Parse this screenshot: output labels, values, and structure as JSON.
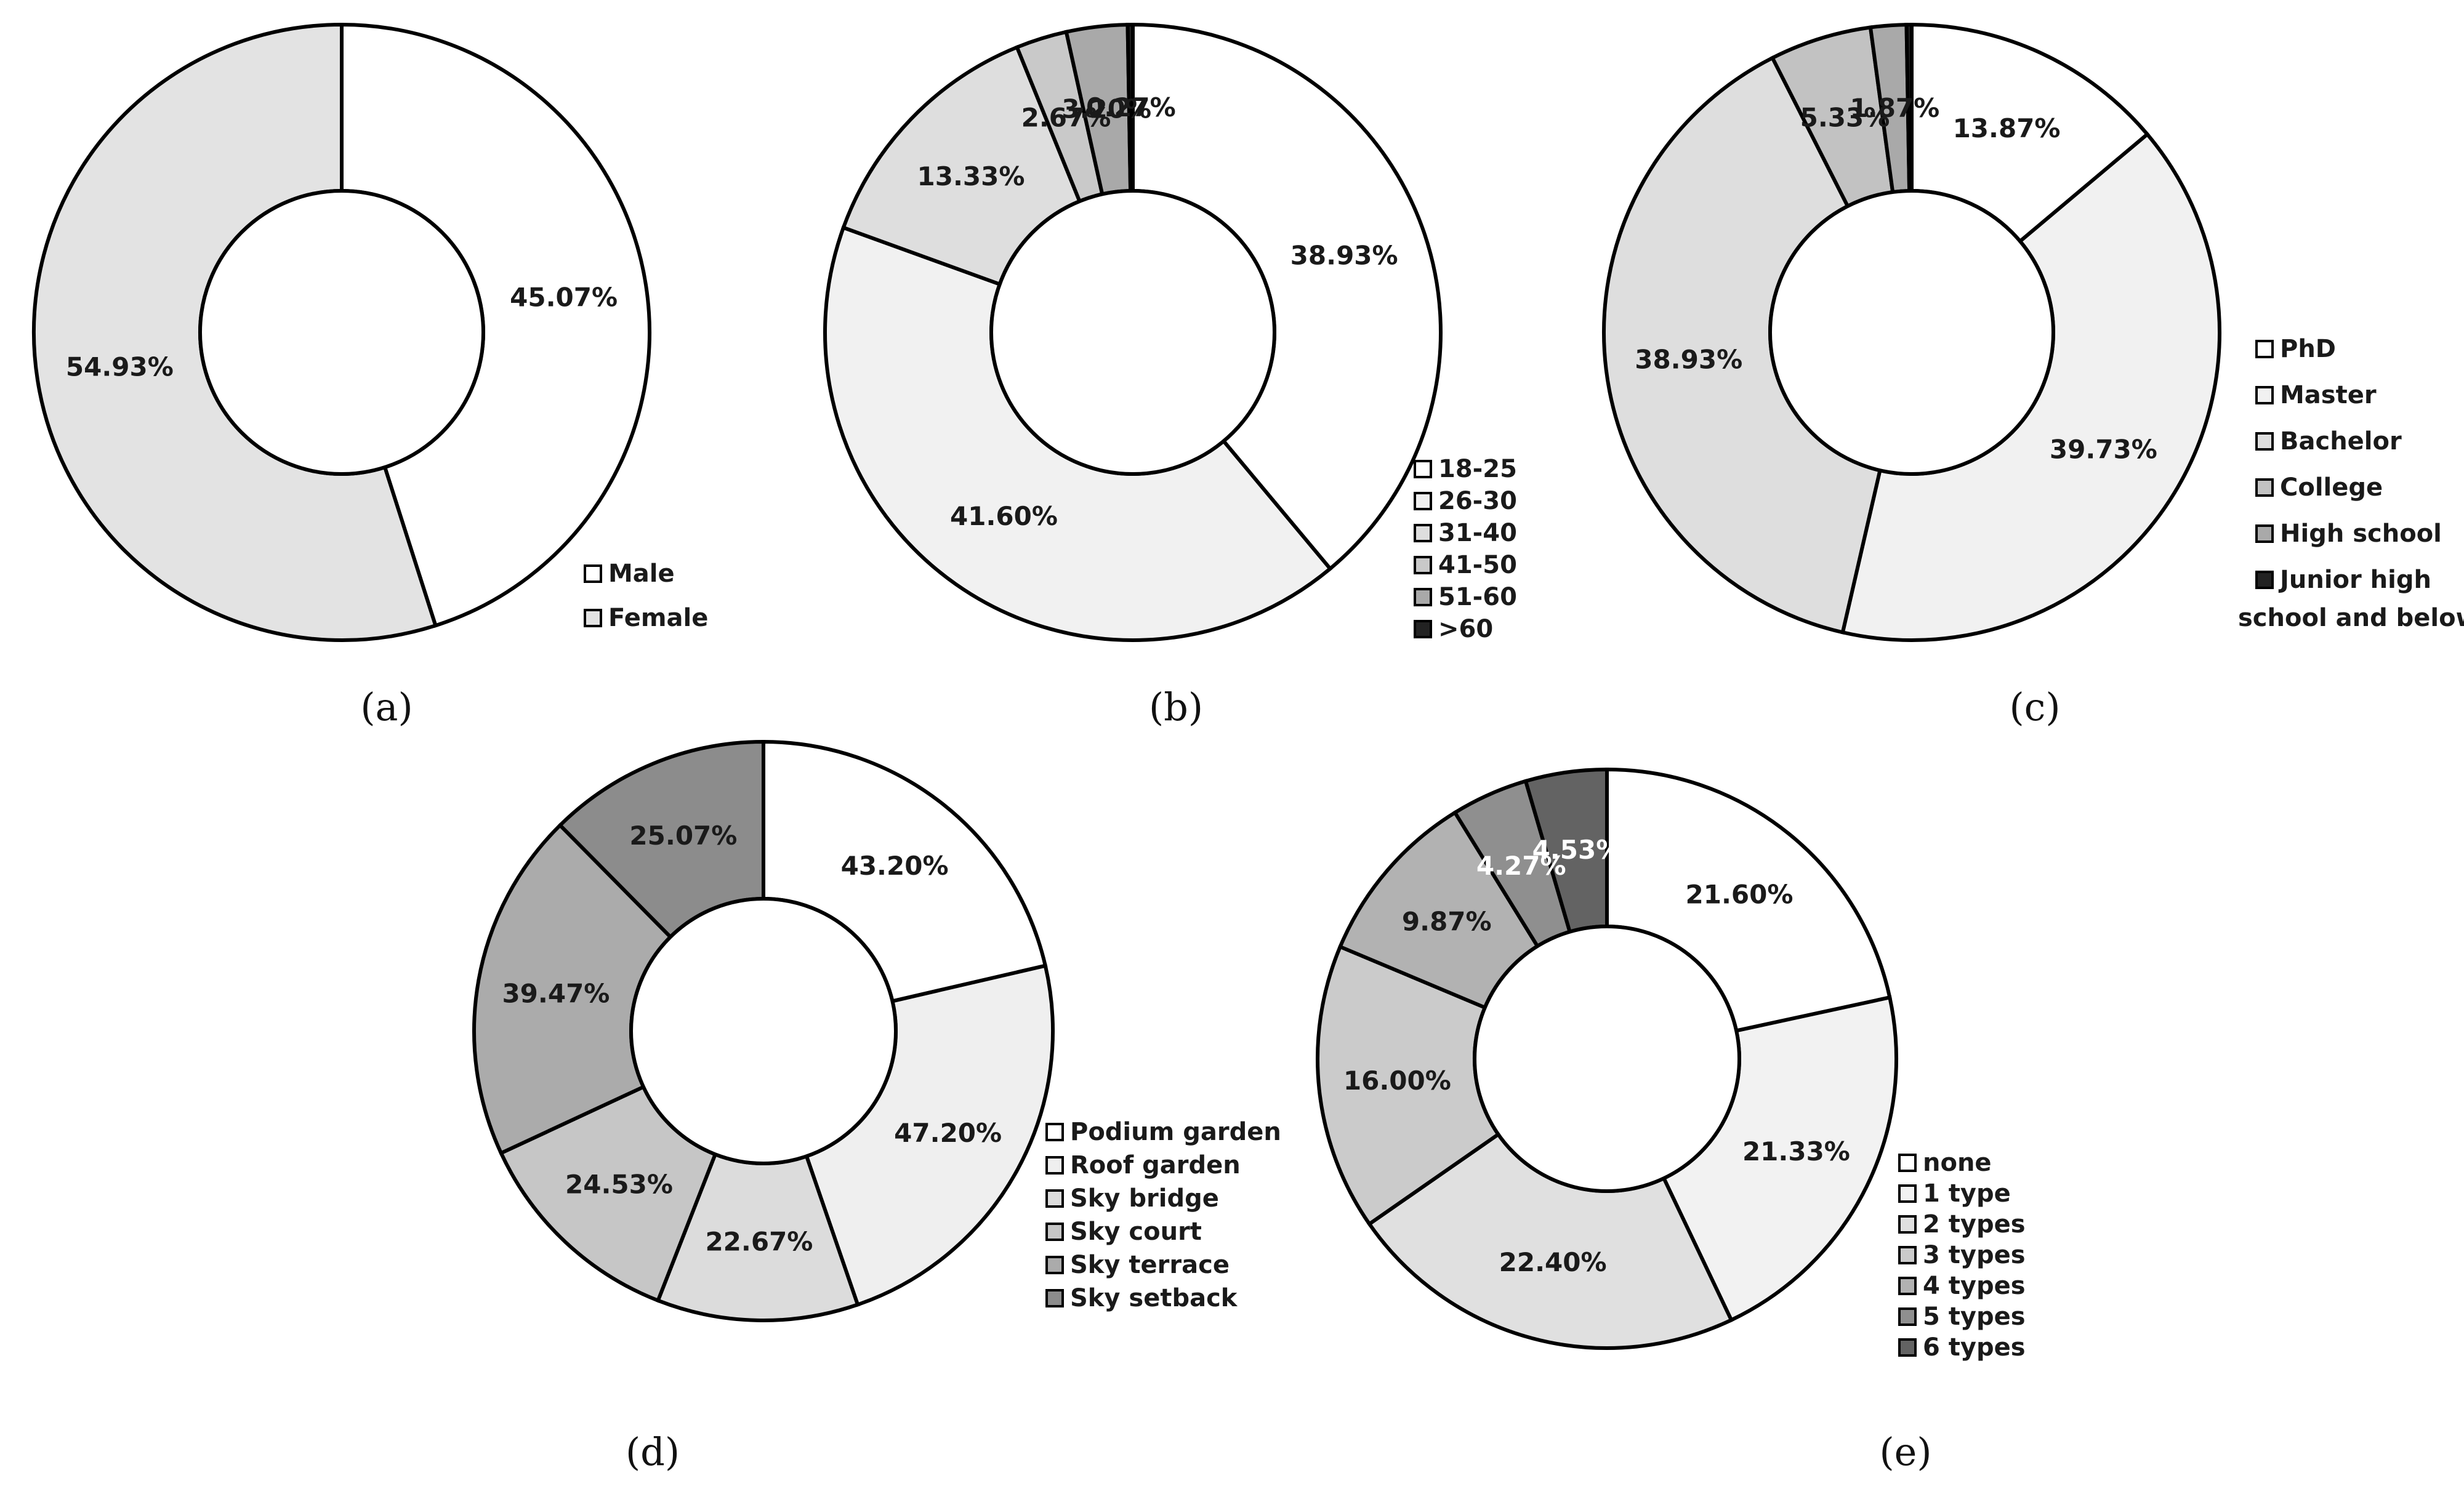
{
  "chart_data": [
    {
      "type": "pie",
      "donut": true,
      "panel_label": "(a)",
      "categories": [
        "Male",
        "Female"
      ],
      "values": [
        45.07,
        54.93
      ],
      "labels": [
        "45.07%",
        "54.93%"
      ],
      "colors": [
        "#ffffff",
        "#e3e3e3"
      ],
      "legend": "bottom-right"
    },
    {
      "type": "pie",
      "donut": true,
      "panel_label": "(b)",
      "categories": [
        "18-25",
        "26-30",
        "31-40",
        "41-50",
        "51-60",
        ">60"
      ],
      "values": [
        38.93,
        41.6,
        13.33,
        2.67,
        3.2,
        0.27
      ],
      "labels": [
        "38.93%",
        "41.60%",
        "13.33%",
        "2.67%",
        "3.20%",
        "0.27%"
      ],
      "colors": [
        "#ffffff",
        "#f1f1f1",
        "#dedede",
        "#c9c9c9",
        "#a9a9a9",
        "#222222"
      ],
      "legend": "bottom-right"
    },
    {
      "type": "pie",
      "donut": true,
      "panel_label": "(c)",
      "categories": [
        "PhD",
        "Master",
        "Bachelor",
        "College",
        "High school",
        "Junior high school and below"
      ],
      "legend_lines": [
        [
          "PhD"
        ],
        [
          "Master"
        ],
        [
          "Bachelor"
        ],
        [
          "College"
        ],
        [
          "High school"
        ],
        [
          "Junior high",
          "school and below"
        ]
      ],
      "values": [
        13.87,
        39.73,
        38.93,
        5.33,
        1.87,
        0.27
      ],
      "labels": [
        "13.87%",
        "39.73%",
        "38.93%",
        "5.33%",
        "1.87%",
        ""
      ],
      "colors": [
        "#ffffff",
        "#f1f1f1",
        "#dedede",
        "#c2c2c2",
        "#a9a9a9",
        "#222222"
      ],
      "legend": "right"
    },
    {
      "type": "pie",
      "donut": true,
      "panel_label": "(d)",
      "categories": [
        "Podium garden",
        "Roof garden",
        "Sky bridge",
        "Sky court",
        "Sky terrace",
        "Sky setback"
      ],
      "values": [
        43.2,
        47.2,
        22.67,
        24.53,
        39.47,
        25.07
      ],
      "labels": [
        "43.20%",
        "47.20%",
        "22.67%",
        "24.53%",
        "39.47%",
        "25.07%"
      ],
      "colors": [
        "#ffffff",
        "#efefef",
        "#dcdcdc",
        "#c6c6c6",
        "#ababab",
        "#8c8c8c"
      ],
      "legend": "bottom-right"
    },
    {
      "type": "pie",
      "donut": true,
      "panel_label": "(e)",
      "categories": [
        "none",
        "1 type",
        "2 types",
        "3 types",
        "4 types",
        "5 types",
        "6 types"
      ],
      "values": [
        21.6,
        21.33,
        22.4,
        16.0,
        9.87,
        4.27,
        4.53
      ],
      "labels": [
        "21.60%",
        "21.33%",
        "22.40%",
        "16.00%",
        "9.87%",
        "4.27%",
        "4.53%"
      ],
      "colors": [
        "#ffffff",
        "#f2f2f2",
        "#e0e0e0",
        "#cbcbcb",
        "#b2b2b2",
        "#8f8f8f",
        "#636363"
      ],
      "legend": "bottom-right"
    }
  ]
}
